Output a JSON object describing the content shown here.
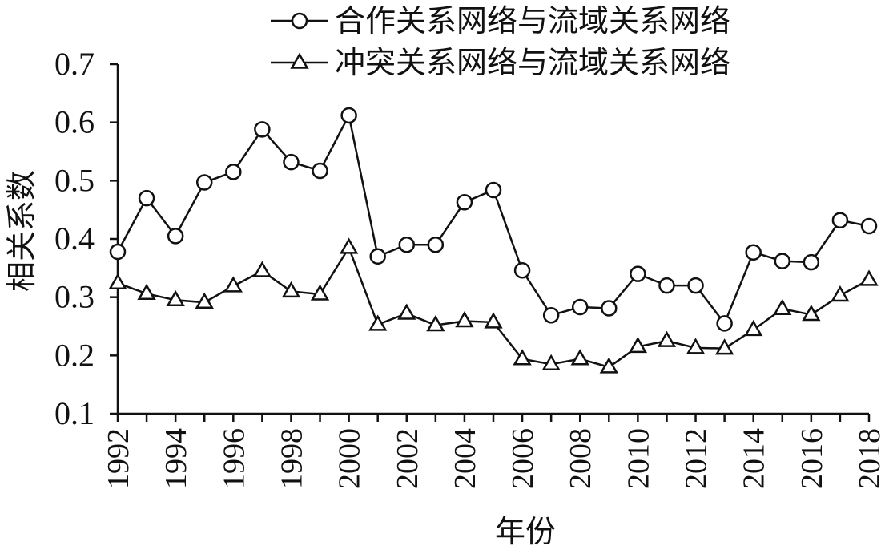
{
  "chart_data": {
    "type": "line",
    "xlabel": "年份",
    "ylabel": "相关系数",
    "xlim": [
      1992,
      2018
    ],
    "ylim": [
      0.1,
      0.7
    ],
    "yticks": [
      0.1,
      0.2,
      0.3,
      0.4,
      0.5,
      0.6,
      0.7
    ],
    "ytick_labels": [
      "0.1",
      "0.2",
      "0.3",
      "0.4",
      "0.5",
      "0.6",
      "0.7"
    ],
    "xticks": [
      1992,
      1994,
      1996,
      1998,
      2000,
      2002,
      2004,
      2006,
      2008,
      2010,
      2012,
      2014,
      2016,
      2018
    ],
    "xtick_labels": [
      "1992",
      "1994",
      "1996",
      "1998",
      "2000",
      "2002",
      "2004",
      "2006",
      "2008",
      "2010",
      "2012",
      "2014",
      "2016",
      "2018"
    ],
    "grid": false,
    "legend_position": "top-right",
    "x": [
      1992,
      1993,
      1994,
      1995,
      1996,
      1997,
      1998,
      1999,
      2000,
      2001,
      2002,
      2003,
      2004,
      2005,
      2006,
      2007,
      2008,
      2009,
      2010,
      2011,
      2012,
      2013,
      2014,
      2015,
      2016,
      2017,
      2018
    ],
    "series": [
      {
        "name": "合作关系网络与流域关系网络",
        "marker": "circle",
        "color": "#111111",
        "values": [
          0.378,
          0.47,
          0.405,
          0.497,
          0.515,
          0.588,
          0.532,
          0.517,
          0.612,
          0.37,
          0.39,
          0.39,
          0.463,
          0.484,
          0.346,
          0.269,
          0.283,
          0.281,
          0.34,
          0.32,
          0.32,
          0.255,
          0.377,
          0.362,
          0.36,
          0.432,
          0.422
        ]
      },
      {
        "name": "冲突关系网络与流域关系网络",
        "marker": "triangle",
        "color": "#111111",
        "values": [
          0.324,
          0.306,
          0.295,
          0.291,
          0.319,
          0.345,
          0.31,
          0.305,
          0.385,
          0.253,
          0.272,
          0.252,
          0.259,
          0.257,
          0.194,
          0.185,
          0.194,
          0.18,
          0.215,
          0.225,
          0.213,
          0.212,
          0.244,
          0.28,
          0.27,
          0.303,
          0.33
        ]
      }
    ]
  }
}
